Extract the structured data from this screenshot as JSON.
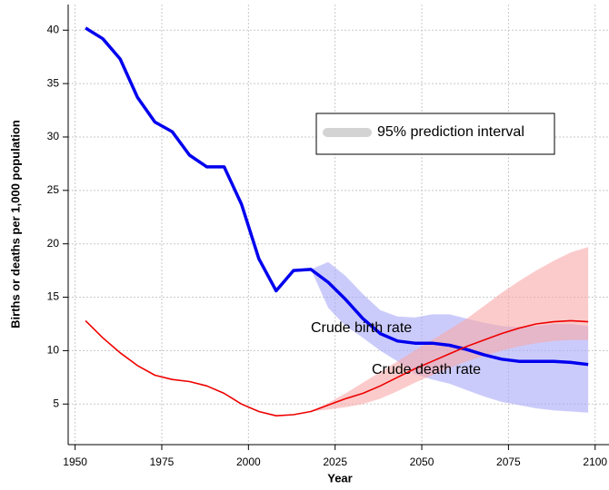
{
  "chart_data": {
    "type": "line",
    "x_label": "Year",
    "y_label": "Births or deaths per 1,000 population",
    "x": [
      1953,
      1958,
      1963,
      1968,
      1973,
      1978,
      1983,
      1988,
      1993,
      1998,
      2003,
      2008,
      2013,
      2018,
      2023,
      2028,
      2033,
      2038,
      2043,
      2048,
      2053,
      2058,
      2063,
      2068,
      2073,
      2078,
      2083,
      2088,
      2093,
      2098
    ],
    "series": [
      {
        "name": "Crude birth rate",
        "color": "#0000ee",
        "width": 3.5,
        "values": [
          40.2,
          39.2,
          37.3,
          33.7,
          31.4,
          30.5,
          28.3,
          27.2,
          27.2,
          23.7,
          18.6,
          15.6,
          17.5,
          17.6,
          16.4,
          14.8,
          13.0,
          11.6,
          10.9,
          10.7,
          10.7,
          10.5,
          10.1,
          9.6,
          9.2,
          9.0,
          9.0,
          9.0,
          8.9,
          8.7
        ]
      },
      {
        "name": "Crude death rate",
        "color": "#ee0000",
        "width": 1.6,
        "values": [
          12.8,
          11.2,
          9.8,
          8.6,
          7.7,
          7.3,
          7.1,
          6.7,
          6.0,
          5.0,
          4.3,
          3.9,
          4.0,
          4.3,
          4.9,
          5.5,
          6.0,
          6.7,
          7.5,
          8.3,
          9.0,
          9.7,
          10.4,
          11.0,
          11.6,
          12.1,
          12.5,
          12.7,
          12.8,
          12.7
        ]
      }
    ],
    "interval_label": "95% prediction interval",
    "intervals": [
      {
        "color": "#a8a8f8",
        "x": [
          2018,
          2023,
          2028,
          2033,
          2038,
          2043,
          2048,
          2053,
          2058,
          2063,
          2068,
          2073,
          2078,
          2083,
          2088,
          2093,
          2098
        ],
        "upper": [
          17.6,
          18.3,
          17.0,
          15.3,
          13.8,
          13.2,
          13.1,
          13.4,
          13.4,
          13.0,
          12.6,
          12.3,
          12.2,
          12.3,
          12.5,
          12.5,
          12.3
        ],
        "lower": [
          17.6,
          14.0,
          12.3,
          11.2,
          10.0,
          9.0,
          7.8,
          7.3,
          6.9,
          6.3,
          5.7,
          5.2,
          4.9,
          4.6,
          4.4,
          4.3,
          4.2
        ]
      },
      {
        "color": "#f8a8a8",
        "x": [
          2018,
          2023,
          2028,
          2033,
          2038,
          2043,
          2048,
          2053,
          2058,
          2063,
          2068,
          2073,
          2078,
          2083,
          2088,
          2093,
          2098
        ],
        "upper": [
          4.3,
          5.1,
          6.0,
          7.0,
          8.0,
          9.0,
          10.0,
          11.0,
          12.0,
          13.0,
          14.2,
          15.4,
          16.5,
          17.5,
          18.4,
          19.2,
          19.7
        ],
        "lower": [
          4.3,
          4.5,
          4.7,
          5.0,
          5.5,
          6.2,
          7.0,
          7.7,
          8.4,
          9.0,
          9.5,
          10.0,
          10.4,
          10.7,
          10.9,
          11.0,
          11.0
        ]
      }
    ],
    "xlim": [
      1948,
      2104
    ],
    "ylim": [
      1.2,
      42.4
    ],
    "xticks": [
      1950,
      1975,
      2000,
      2025,
      2050,
      2075,
      2100
    ],
    "yticks": [
      5,
      10,
      15,
      20,
      25,
      30,
      35,
      40
    ],
    "grid": true
  }
}
